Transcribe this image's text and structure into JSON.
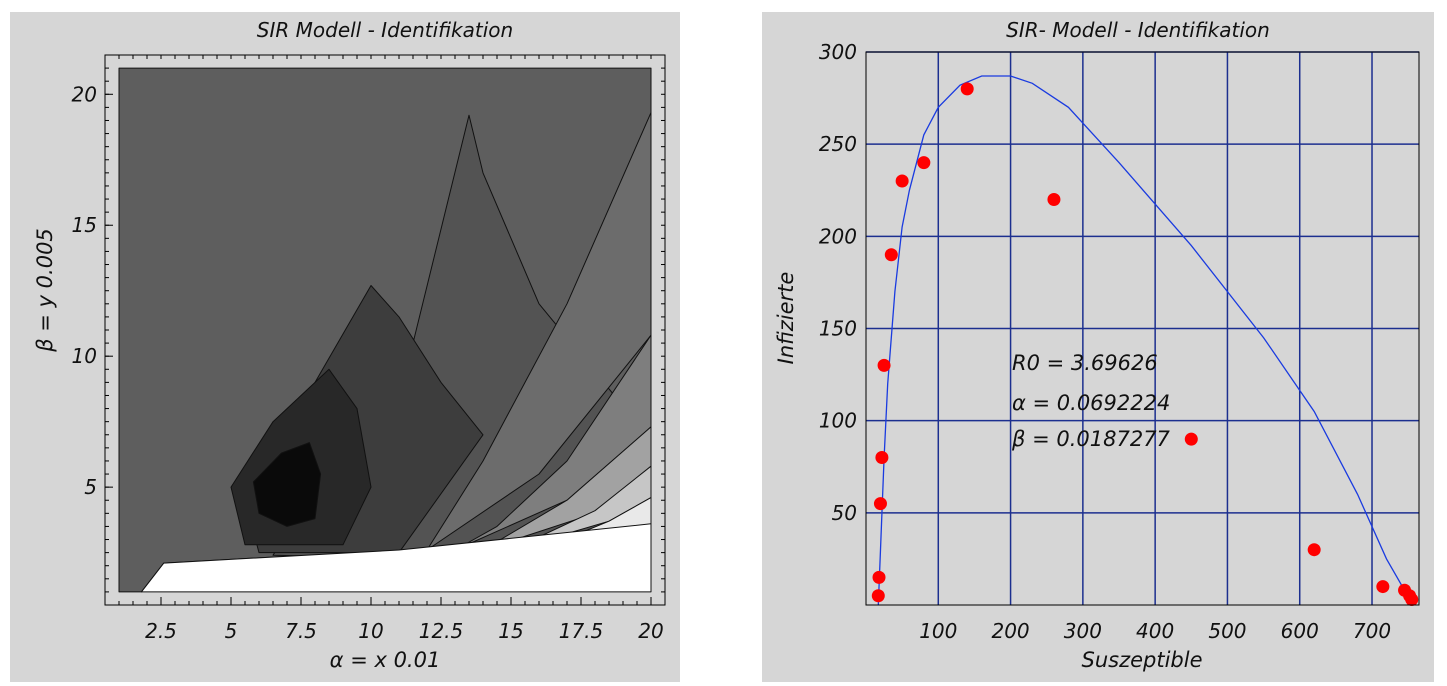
{
  "chart_data": [
    {
      "type": "heatmap",
      "title": "SIR Modell - Identifikation",
      "xlabel": "α = x 0.01",
      "ylabel": "β = y 0.005",
      "xlim": [
        0.5,
        20.5
      ],
      "ylim": [
        0.5,
        21.5
      ],
      "x_ticks": [
        {
          "value": 2.5,
          "label": "2.5"
        },
        {
          "value": 5,
          "label": "5"
        },
        {
          "value": 7.5,
          "label": "7.5"
        },
        {
          "value": 10,
          "label": "10"
        },
        {
          "value": 12.5,
          "label": "12.5"
        },
        {
          "value": 15,
          "label": "15"
        },
        {
          "value": 17.5,
          "label": "17.5"
        },
        {
          "value": 20,
          "label": "20"
        }
      ],
      "y_ticks": [
        {
          "value": 5,
          "label": "5"
        },
        {
          "value": 10,
          "label": "10"
        },
        {
          "value": 15,
          "label": "15"
        },
        {
          "value": 20,
          "label": "20"
        }
      ],
      "grid": false,
      "contour_levels": [
        {
          "color": "#5e5e5e",
          "outline": [
            [
              20,
              3.6
            ],
            [
              11,
              2.6
            ],
            [
              2.6,
              2.1
            ],
            [
              1.8,
              1.0
            ],
            [
              1,
              1
            ],
            [
              1,
              21
            ],
            [
              20,
              21
            ]
          ]
        },
        {
          "color": "#535353",
          "outline": [
            [
              6.5,
              2.4
            ],
            [
              11.5,
              10.5
            ],
            [
              13.5,
              19.2
            ],
            [
              14,
              17
            ],
            [
              16,
              12
            ],
            [
              20,
              6.8
            ],
            [
              20,
              2.8
            ],
            [
              11,
              2.3
            ]
          ]
        },
        {
          "color": "#3d3d3d",
          "outline": [
            [
              6,
              2.5
            ],
            [
              5.5,
              4.5
            ],
            [
              8,
              9
            ],
            [
              10,
              12.7
            ],
            [
              11,
              11.5
            ],
            [
              12.5,
              9
            ],
            [
              14,
              7
            ],
            [
              11,
              2.5
            ]
          ]
        },
        {
          "color": "#282828",
          "outline": [
            [
              5.5,
              2.8
            ],
            [
              5,
              5
            ],
            [
              6.5,
              7.5
            ],
            [
              8.5,
              9.5
            ],
            [
              9.5,
              8
            ],
            [
              10,
              5
            ],
            [
              9,
              2.8
            ]
          ]
        },
        {
          "color": "#0a0a0a",
          "outline": [
            [
              6,
              4
            ],
            [
              5.8,
              5.2
            ],
            [
              6.8,
              6.3
            ],
            [
              7.8,
              6.7
            ],
            [
              8.2,
              5.5
            ],
            [
              8,
              3.8
            ],
            [
              7,
              3.5
            ]
          ]
        },
        {
          "color": "#6c6c6c",
          "outline": [
            [
              12,
              2.6
            ],
            [
              16,
              5.5
            ],
            [
              20,
              10.8
            ],
            [
              20,
              19.3
            ],
            [
              17,
              12
            ],
            [
              14,
              6
            ]
          ]
        },
        {
          "color": "#7e7e7e",
          "outline": [
            [
              13,
              2.6
            ],
            [
              17,
              4.5
            ],
            [
              20,
              7.3
            ],
            [
              20,
              10.8
            ],
            [
              17,
              6
            ],
            [
              14.5,
              3.5
            ]
          ]
        },
        {
          "color": "#a2a2a2",
          "outline": [
            [
              14,
              2.6
            ],
            [
              18,
              4
            ],
            [
              20,
              5.8
            ],
            [
              20,
              7.3
            ],
            [
              17,
              4.5
            ]
          ]
        },
        {
          "color": "#c6c6c6",
          "outline": [
            [
              15,
              2.6
            ],
            [
              18.5,
              3.7
            ],
            [
              20,
              4.6
            ],
            [
              20,
              5.8
            ],
            [
              18,
              4.1
            ]
          ]
        },
        {
          "color": "#e9e9e9",
          "outline": [
            [
              16,
              2.6
            ],
            [
              20,
              3.6
            ],
            [
              20,
              4.6
            ],
            [
              18.5,
              3.7
            ]
          ]
        },
        {
          "color": "#ffffff",
          "outline": [
            [
              1.8,
              1.0
            ],
            [
              2.6,
              2.1
            ],
            [
              11,
              2.6
            ],
            [
              20,
              3.6
            ],
            [
              20,
              1
            ],
            [
              2,
              1
            ]
          ]
        }
      ]
    },
    {
      "type": "scatter",
      "title": "SIR- Modell - Identifikation",
      "xlabel": "Suszeptible",
      "ylabel": "Infizierte",
      "xlim": [
        0,
        765
      ],
      "ylim": [
        0,
        300
      ],
      "x_ticks": [
        100,
        200,
        300,
        400,
        500,
        600,
        700
      ],
      "y_ticks": [
        50,
        100,
        150,
        200,
        250,
        300
      ],
      "grid": true,
      "annotations": [
        "R0 = 3.69626",
        "α = 0.0692224",
        "β = 0.0187277"
      ],
      "points": {
        "color": "#ff0000",
        "x": [
          17,
          18,
          20,
          22,
          25,
          35,
          50,
          80,
          140,
          260,
          450,
          620,
          715,
          745,
          752,
          755
        ],
        "y": [
          5,
          15,
          55,
          80,
          130,
          190,
          230,
          240,
          280,
          220,
          90,
          30,
          10,
          8,
          5,
          3
        ]
      },
      "fit_curve": {
        "color": "#1a3be0",
        "x": [
          17,
          20,
          25,
          30,
          40,
          50,
          60,
          80,
          100,
          130,
          160,
          200,
          230,
          280,
          350,
          450,
          550,
          620,
          680,
          720,
          745,
          755
        ],
        "y": [
          0,
          30,
          80,
          120,
          170,
          205,
          225,
          255,
          270,
          282,
          287,
          287,
          283,
          270,
          240,
          195,
          145,
          105,
          60,
          25,
          8,
          0
        ]
      }
    }
  ]
}
